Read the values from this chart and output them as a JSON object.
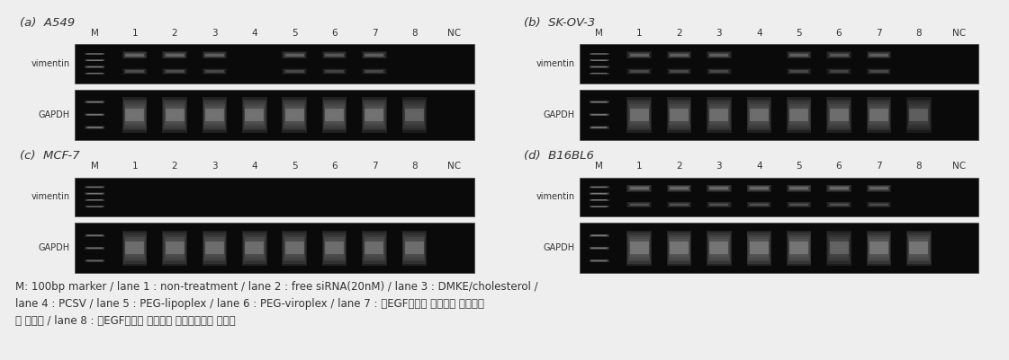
{
  "panels": [
    {
      "label": "(a)  A549",
      "id": "a"
    },
    {
      "label": "(b)  SK-OV-3",
      "id": "b"
    },
    {
      "label": "(c)  MCF-7",
      "id": "c"
    },
    {
      "label": "(d)  B16BL6",
      "id": "d"
    }
  ],
  "lane_labels": [
    "M",
    "1",
    "2",
    "3",
    "4",
    "5",
    "6",
    "7",
    "8",
    "NC"
  ],
  "caption_lines": [
    "M: 100bp marker / lane 1 : non-treatment / lane 2 : free siRNA(20nM) / lane 3 : DMKE/cholesterol /",
    "lane 4 : PCSV / lane 5 : PEG-lipoplex / lane 6 : PEG-viroplex / lane 7 : 항EGF수용체 양이온성 면역리포",
    "쇼 복합체 / lane 8 : 항EGF수용체 양이온성 면역바이로솜 복합체"
  ],
  "figure_bg": "#eeeeee",
  "text_color": "#333333",
  "caption_fontsize": 8.5,
  "label_fontsize": 9.5,
  "lane_fontsize": 7.5,
  "rowlabel_fontsize": 7.0,
  "panels_data": {
    "a": {
      "vimentin_intensity": [
        0.9,
        0.5,
        0.5,
        0.45,
        0.0,
        0.45,
        0.4,
        0.45,
        0.0,
        0.0
      ],
      "gapdh_intensity": [
        0.8,
        0.65,
        0.65,
        0.65,
        0.65,
        0.65,
        0.65,
        0.65,
        0.5,
        0.0
      ],
      "vimentin_two_band": [
        true,
        true,
        true,
        true,
        false,
        true,
        true,
        true,
        false,
        false
      ],
      "gapdh_two_band": [
        true,
        true,
        true,
        true,
        true,
        true,
        true,
        true,
        true,
        false
      ]
    },
    "b": {
      "vimentin_intensity": [
        0.85,
        0.45,
        0.45,
        0.45,
        0.0,
        0.45,
        0.4,
        0.45,
        0.0,
        0.0
      ],
      "gapdh_intensity": [
        0.8,
        0.6,
        0.6,
        0.6,
        0.6,
        0.6,
        0.6,
        0.6,
        0.45,
        0.0
      ],
      "vimentin_two_band": [
        true,
        true,
        true,
        true,
        false,
        true,
        true,
        true,
        false,
        false
      ],
      "gapdh_two_band": [
        true,
        true,
        true,
        true,
        true,
        true,
        true,
        true,
        true,
        false
      ]
    },
    "c": {
      "vimentin_intensity": [
        0.8,
        0.0,
        0.0,
        0.0,
        0.0,
        0.0,
        0.0,
        0.0,
        0.0,
        0.0
      ],
      "gapdh_intensity": [
        0.7,
        0.6,
        0.6,
        0.6,
        0.6,
        0.6,
        0.6,
        0.6,
        0.6,
        0.0
      ],
      "vimentin_two_band": [
        true,
        false,
        false,
        false,
        false,
        false,
        false,
        false,
        false,
        false
      ],
      "gapdh_two_band": [
        true,
        true,
        true,
        true,
        true,
        true,
        true,
        true,
        true,
        false
      ]
    },
    "d": {
      "vimentin_intensity": [
        0.9,
        0.55,
        0.55,
        0.55,
        0.55,
        0.55,
        0.55,
        0.5,
        0.0,
        0.0
      ],
      "gapdh_intensity": [
        0.85,
        0.7,
        0.7,
        0.7,
        0.7,
        0.7,
        0.5,
        0.7,
        0.7,
        0.0
      ],
      "vimentin_two_band": [
        true,
        true,
        true,
        true,
        true,
        true,
        true,
        true,
        false,
        false
      ],
      "gapdh_two_band": [
        true,
        true,
        true,
        true,
        true,
        true,
        true,
        true,
        true,
        false
      ]
    }
  }
}
